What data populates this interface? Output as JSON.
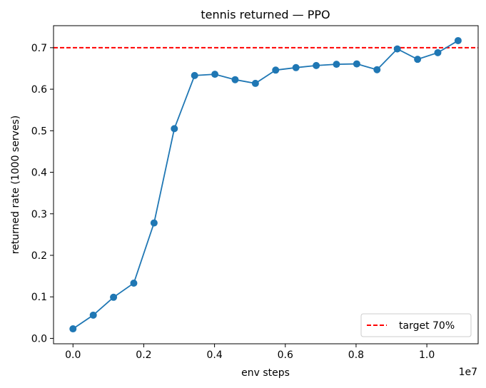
{
  "chart_data": {
    "type": "line",
    "title": "tennis returned — PPO",
    "xlabel": "env steps",
    "ylabel": "returned rate (1000 serves)",
    "x_offset_label": "1e7",
    "xlim": [
      -0.055,
      1.145
    ],
    "ylim": [
      -0.013,
      0.753
    ],
    "x_ticks": [
      0.0,
      0.2,
      0.4,
      0.6,
      0.8,
      1.0
    ],
    "x_tick_labels": [
      "0.0",
      "0.2",
      "0.4",
      "0.6",
      "0.8",
      "1.0"
    ],
    "y_ticks": [
      0.0,
      0.1,
      0.2,
      0.3,
      0.4,
      0.5,
      0.6,
      0.7
    ],
    "y_tick_labels": [
      "0.0",
      "0.1",
      "0.2",
      "0.3",
      "0.4",
      "0.5",
      "0.6",
      "0.7"
    ],
    "grid": false,
    "legend_position": "lower-right",
    "series": [
      {
        "color": "#1f77b4",
        "x": [
          0.0,
          0.0573,
          0.1146,
          0.1718,
          0.2291,
          0.2864,
          0.3437,
          0.401,
          0.4582,
          0.5155,
          0.5728,
          0.6301,
          0.6874,
          0.7446,
          0.8019,
          0.8592,
          0.9165,
          0.9738,
          1.031,
          1.0883
        ],
        "y": [
          0.023,
          0.056,
          0.099,
          0.133,
          0.278,
          0.505,
          0.633,
          0.636,
          0.623,
          0.614,
          0.646,
          0.652,
          0.657,
          0.66,
          0.661,
          0.647,
          0.697,
          0.672,
          0.688,
          0.717
        ]
      }
    ],
    "reference_lines": [
      {
        "name": "target 70%",
        "y": 0.7,
        "color": "#ff0000",
        "style": "dashed"
      }
    ]
  }
}
